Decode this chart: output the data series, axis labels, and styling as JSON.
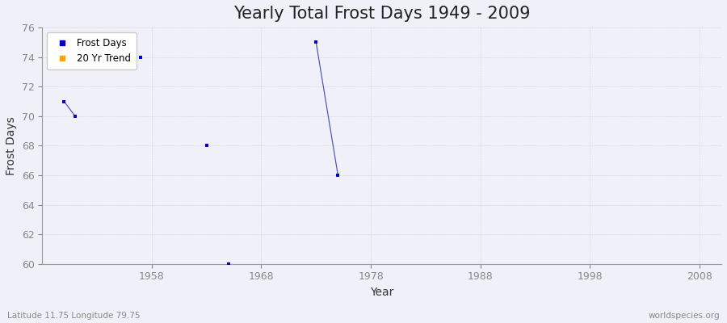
{
  "title": "Yearly Total Frost Days 1949 - 2009",
  "xlabel": "Year",
  "ylabel": "Frost Days",
  "background_color": "#f0f0f8",
  "plot_bg_color": "#f0f0f8",
  "xlim": [
    1948,
    2010
  ],
  "ylim": [
    60,
    76
  ],
  "xticks": [
    1958,
    1968,
    1978,
    1988,
    1998,
    2008
  ],
  "yticks": [
    60,
    62,
    64,
    66,
    68,
    70,
    72,
    74,
    76
  ],
  "frost_days_color": "#0000cc",
  "trend_color": "#ffa500",
  "line_color": "#4444bb",
  "frost_points": [
    [
      1950,
      71
    ],
    [
      1951,
      70
    ],
    [
      1957,
      74
    ],
    [
      1963,
      68
    ],
    [
      1965,
      60
    ],
    [
      1973,
      75
    ],
    [
      1975,
      66
    ]
  ],
  "line_segments": [
    [
      [
        1950,
        71
      ],
      [
        1951,
        70
      ]
    ],
    [
      [
        1973,
        75
      ],
      [
        1975,
        66
      ]
    ]
  ],
  "subtitle_left": "Latitude 11.75 Longitude 79.75",
  "subtitle_right": "worldspecies.org",
  "title_fontsize": 15,
  "axis_fontsize": 9,
  "label_fontsize": 10,
  "grid_color": "#ccccdd",
  "grid_alpha": 0.8,
  "tick_color": "#888888",
  "spine_color": "#999999"
}
